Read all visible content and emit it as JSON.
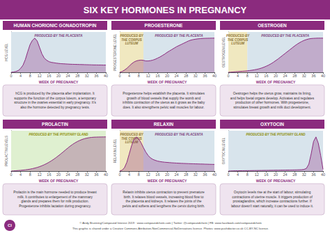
{
  "title": "SIX KEY HORMONES IN PREGNANCY",
  "color": "#8B2B7E",
  "badge": "CI",
  "footer": [
    "© Andy Brunning/Compound Interest 2019 · www.compoundchem.com | Twitter: @compoundchem | FB: www.facebook.com/compoundchem",
    "This graphic is shared under a Creative Commons Attribution-NonCommercial-NoDerivatives licence. Photos: www.pushdoctor.co.uk CC-BY-NC licence."
  ],
  "chart_data": [
    {
      "type": "line",
      "title": "HUMAN CHORIONIC GONADOTROPIN",
      "ylabel": "HCG LEVEL",
      "xlabel": "WEEK OF PREGNANCY",
      "x": [
        0,
        1,
        2,
        3,
        4,
        5,
        6,
        7,
        8,
        9,
        10,
        11,
        12,
        13,
        14,
        15,
        16,
        17,
        18,
        19,
        20,
        21,
        22,
        23,
        24,
        25,
        26,
        27,
        28,
        29,
        30,
        31,
        32,
        33,
        34,
        35,
        36,
        37,
        38,
        39,
        40
      ],
      "values": [
        0,
        0.05,
        0.12,
        0.25,
        0.55,
        1.0,
        1.8,
        2.9,
        3.9,
        4.5,
        4.8,
        4.4,
        3.5,
        2.6,
        2.0,
        1.7,
        1.5,
        1.4,
        1.35,
        1.3,
        1.25,
        1.22,
        1.2,
        1.18,
        1.16,
        1.14,
        1.13,
        1.12,
        1.11,
        1.1,
        1.09,
        1.08,
        1.07,
        1.06,
        1.05,
        1.04,
        1.04,
        1.03,
        1.03,
        1.02,
        1.02
      ],
      "color": "#8B2B7E",
      "xlim": [
        0,
        40
      ],
      "xticks": [
        0,
        4,
        8,
        12,
        16,
        20,
        24,
        28,
        32,
        36,
        40
      ],
      "ylim": [
        0,
        5.664
      ],
      "tick_labels": "x",
      "grid": false,
      "regions": [
        {
          "start": 0,
          "end": 40,
          "color": "#D8E4EC",
          "text": "PRODUCED BY THE PLACENTA",
          "text_color": "#7B3B7B"
        }
      ],
      "description": "hCG is produced by the placenta after implantation. It\nsupports the function of the corpus luteum, a temporary\nstructure in the ovaries essential in early pregnancy. It's\nalso the hormone detected by pregnancy tests."
    },
    {
      "type": "line",
      "title": "PROGESTERONE",
      "ylabel": "PROGESTERONE LEVEL",
      "xlabel": "WEEK OF PREGNANCY",
      "x": [
        0,
        1,
        2,
        3,
        4,
        5,
        6,
        7,
        8,
        9,
        10,
        11,
        12,
        13,
        14,
        15,
        16,
        17,
        18,
        19,
        20,
        21,
        22,
        23,
        24,
        25,
        26,
        27,
        28,
        29,
        30,
        31,
        32,
        33,
        34,
        35,
        36,
        37,
        38,
        39,
        40
      ],
      "values": [
        0,
        0.15,
        0.4,
        0.7,
        1.1,
        1.5,
        1.8,
        2.0,
        2.1,
        2.15,
        2.1,
        2.0,
        2.0,
        2.05,
        2.15,
        2.3,
        2.5,
        2.7,
        2.95,
        3.2,
        3.5,
        3.75,
        4.0,
        4.25,
        4.5,
        4.7,
        4.9,
        5.1,
        5.3,
        5.5,
        5.65,
        5.75,
        5.82,
        5.88,
        5.92,
        5.95,
        5.97,
        5.98,
        5.99,
        6.0,
        6.0
      ],
      "color": "#8B2B7E",
      "xlim": [
        0,
        40
      ],
      "xticks": [
        0,
        4,
        8,
        12,
        16,
        20,
        24,
        28,
        32,
        36,
        40
      ],
      "ylim": [
        0,
        7.08
      ],
      "tick_labels": "x",
      "grid": false,
      "regions": [
        {
          "start": 0,
          "end": 10,
          "color": "#F0E8C0",
          "text": "PRODUCED BY\nTHE CORPUS\nLUTEUM",
          "text_color": "#8B7030"
        },
        {
          "start": 10,
          "end": 40,
          "color": "#D8E4EC",
          "text": "PRODUCED BY THE PLACENTA",
          "text_color": "#7B3B7B"
        }
      ],
      "description": "Progesterone helps establish the placenta. It stimulates\ngrowth of blood vessels that supply the womb and\ninhibits contraction of the uterus as it grows as the baby\ndoes. It also strengthens pelvic wall muscles for labour."
    },
    {
      "type": "line",
      "title": "OESTROGEN",
      "ylabel": "OESTROGEN LEVEL",
      "xlabel": "WEEK OF PREGNANCY",
      "x": [
        0,
        1,
        2,
        3,
        4,
        5,
        6,
        7,
        8,
        9,
        10,
        11,
        12,
        13,
        14,
        15,
        16,
        17,
        18,
        19,
        20,
        21,
        22,
        23,
        24,
        25,
        26,
        27,
        28,
        29,
        30,
        31,
        32,
        33,
        34,
        35,
        36,
        37,
        38,
        39,
        40
      ],
      "values": [
        0,
        0.05,
        0.1,
        0.15,
        0.2,
        0.25,
        0.3,
        0.35,
        0.4,
        0.48,
        0.57,
        0.68,
        0.8,
        0.95,
        1.15,
        1.38,
        1.65,
        1.95,
        2.3,
        2.7,
        3.15,
        3.6,
        4.1,
        4.6,
        5.1,
        5.6,
        6.1,
        6.6,
        7.1,
        7.55,
        7.95,
        8.3,
        8.6,
        8.82,
        9.0,
        9.1,
        9.15,
        9.18,
        9.2,
        9.2,
        9.2
      ],
      "color": "#8B2B7E",
      "xlim": [
        0,
        40
      ],
      "xticks": [
        0,
        4,
        8,
        12,
        16,
        20,
        24,
        28,
        32,
        36,
        40
      ],
      "ylim": [
        0,
        10.856
      ],
      "tick_labels": "x",
      "grid": false,
      "regions": [
        {
          "start": 0,
          "end": 8,
          "color": "#F0E8C0",
          "text": "PRODUCED BY\nTHE CORPUS\nLUTEUM",
          "text_color": "#8B7030"
        },
        {
          "start": 8,
          "end": 40,
          "color": "#D8E4EC",
          "text": "PRODUCED BY THE PLACENTA",
          "text_color": "#7B3B7B"
        }
      ],
      "description": "Oestrogen helps the uterus grow, maintains its lining,\nand helps foetal organs develop. Activates and regulates\nproduction of other hormones. With progesterone,\nstimulates breast growth and milk duct development."
    },
    {
      "type": "line",
      "title": "PROLACTIN",
      "ylabel": "PROLACTIN LEVELS",
      "xlabel": "WEEK OF PREGNANCY",
      "x": [
        0,
        1,
        2,
        3,
        4,
        5,
        6,
        7,
        8,
        9,
        10,
        11,
        12,
        13,
        14,
        15,
        16,
        17,
        18,
        19,
        20,
        21,
        22,
        23,
        24,
        25,
        26,
        27,
        28,
        29,
        30,
        31,
        32,
        33,
        34,
        35,
        36,
        37,
        38,
        39,
        40
      ],
      "values": [
        0,
        0.05,
        0.1,
        0.15,
        0.2,
        0.26,
        0.33,
        0.42,
        0.52,
        0.65,
        0.8,
        0.97,
        1.18,
        1.42,
        1.7,
        2.0,
        2.35,
        2.73,
        3.15,
        3.6,
        4.08,
        4.58,
        5.1,
        5.63,
        6.15,
        6.65,
        7.1,
        7.5,
        7.85,
        8.15,
        8.4,
        8.6,
        8.75,
        8.87,
        8.95,
        9.0,
        9.02,
        9.04,
        9.05,
        9.06,
        9.07
      ],
      "color": "#8B2B7E",
      "xlim": [
        0,
        40
      ],
      "xticks": [
        0,
        4,
        8,
        12,
        16,
        20,
        24,
        28,
        32,
        36,
        40
      ],
      "ylim": [
        0,
        10.7026
      ],
      "tick_labels": "x",
      "grid": false,
      "regions": [
        {
          "start": 0,
          "end": 40,
          "color": "#DFF0D0",
          "text": "PRODUCED BY THE PITUITARY GLAND",
          "text_color": "#8B8B00"
        }
      ],
      "description": "Prolactin is the main hormone needed to produce breast\nmilk. It contributes to enlargement of the mammary\nglands and prepares them for milk production.\nProgesterone inhibits lactation during pregnancy."
    },
    {
      "type": "line",
      "title": "RELAXIN",
      "ylabel": "RELAXIN LEVEL",
      "xlabel": "WEEK OF PREGNANCY",
      "x": [
        0,
        1,
        2,
        3,
        4,
        5,
        6,
        7,
        8,
        9,
        10,
        11,
        12,
        13,
        14,
        15,
        16,
        17,
        18,
        19,
        20,
        21,
        22,
        23,
        24,
        25,
        26,
        27,
        28,
        29,
        30,
        31,
        32,
        33,
        34,
        35,
        36,
        37,
        38,
        39,
        40
      ],
      "values": [
        0,
        0.2,
        0.7,
        1.8,
        3.5,
        5.2,
        6.5,
        7.0,
        6.6,
        5.8,
        4.8,
        3.9,
        3.2,
        2.7,
        2.4,
        2.2,
        2.05,
        1.95,
        1.88,
        1.82,
        1.78,
        1.74,
        1.7,
        1.67,
        1.64,
        1.61,
        1.59,
        1.57,
        1.55,
        1.53,
        1.51,
        1.5,
        1.48,
        1.47,
        1.45,
        1.44,
        1.42,
        1.41,
        1.39,
        1.38,
        1.37
      ],
      "color": "#8B2B7E",
      "xlim": [
        0,
        40
      ],
      "xticks": [
        0,
        4,
        8,
        12,
        16,
        20,
        24,
        28,
        32,
        36,
        40
      ],
      "ylim": [
        0,
        8.26
      ],
      "tick_labels": "x",
      "grid": false,
      "regions": [
        {
          "start": 0,
          "end": 10,
          "color": "#F0E8C0",
          "text": "PRODUCED BY\nTHE CORPUS\nLUTEUM",
          "text_color": "#8B7030"
        },
        {
          "start": 10,
          "end": 40,
          "color": "#D8E4EC",
          "text": "PRODUCED BY THE PLACENTA",
          "text_color": "#7B3B7B"
        }
      ],
      "description": "Relaxin inhibits uterus contraction to prevent premature\nbirth. It relaxes blood vessels, increasing blood flow to\nthe placenta and kidneys. It relaxes the joints of the\npelvis and softens and lengthens the cervix during birth."
    },
    {
      "type": "line",
      "title": "OXYTOCIN",
      "ylabel": "OXYTOCIN LEVEL",
      "xlabel": "WEEK OF PREGNANCY",
      "x": [
        0,
        1,
        2,
        3,
        4,
        5,
        6,
        7,
        8,
        9,
        10,
        11,
        12,
        13,
        14,
        15,
        16,
        17,
        18,
        19,
        20,
        21,
        22,
        23,
        24,
        25,
        26,
        27,
        28,
        29,
        30,
        31,
        32,
        33,
        34,
        35,
        36,
        37,
        38,
        39,
        40
      ],
      "values": [
        0,
        0.04,
        0.06,
        0.08,
        0.09,
        0.1,
        0.11,
        0.12,
        0.13,
        0.14,
        0.15,
        0.16,
        0.17,
        0.18,
        0.19,
        0.2,
        0.21,
        0.22,
        0.23,
        0.24,
        0.25,
        0.26,
        0.27,
        0.28,
        0.29,
        0.3,
        0.31,
        0.32,
        0.33,
        0.35,
        0.37,
        0.4,
        0.5,
        0.8,
        2.0,
        5.0,
        8.5,
        9.8,
        8.0,
        4.5,
        0.5
      ],
      "color": "#8B2B7E",
      "xlim": [
        0,
        40
      ],
      "xticks": [
        0,
        4,
        8,
        12,
        16,
        20,
        24,
        28,
        32,
        36,
        40
      ],
      "ylim": [
        0,
        11.564
      ],
      "tick_labels": "x",
      "grid": false,
      "regions": [
        {
          "start": 0,
          "end": 40,
          "color": "#D8E4EC",
          "text": "PRODUCED BY THE PITUITARY GLAND",
          "text_color": "#8B8B00"
        }
      ],
      "description": "Oxytocin levels rise at the start of labour, stimulating\ncontractions of uterine muscle. It triggers production of\nprostaglandins, which increase contractions further. If\nlabour doesn't start naturally, it can be used to induce it."
    }
  ]
}
